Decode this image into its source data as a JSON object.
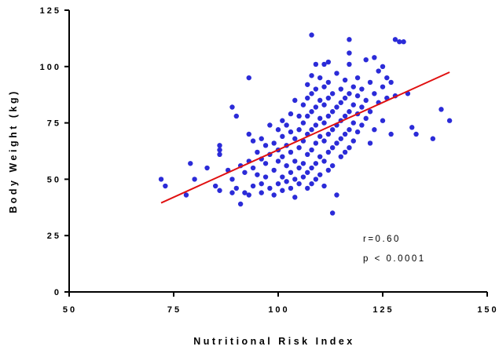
{
  "chart_data": {
    "type": "scatter",
    "xlabel": "Nutritional Risk Index",
    "ylabel": "Body Weight (kg)",
    "xlim": [
      50,
      150
    ],
    "ylim": [
      0,
      125
    ],
    "x_ticks": [
      50,
      75,
      100,
      125,
      150
    ],
    "y_ticks": [
      0,
      25,
      50,
      75,
      100,
      125
    ],
    "grid": false,
    "point_color": "#2b2bd8",
    "line_color": "#e01010",
    "annotations": [
      "r=0.60",
      "p < 0.0001"
    ],
    "regression_line": {
      "x": [
        72,
        141
      ],
      "y": [
        39.5,
        97.5
      ]
    },
    "series": [
      {
        "points": [
          [
            72,
            50
          ],
          [
            73,
            47
          ],
          [
            78,
            43
          ],
          [
            79,
            57
          ],
          [
            80,
            50
          ],
          [
            83,
            55
          ],
          [
            85,
            47
          ],
          [
            86,
            45
          ],
          [
            86,
            65
          ],
          [
            86,
            63
          ],
          [
            86,
            61
          ],
          [
            88,
            54
          ],
          [
            89,
            82
          ],
          [
            89,
            50
          ],
          [
            89,
            44
          ],
          [
            90,
            78
          ],
          [
            90,
            46
          ],
          [
            91,
            56
          ],
          [
            91,
            39
          ],
          [
            92,
            53
          ],
          [
            92,
            44
          ],
          [
            93,
            95
          ],
          [
            93,
            70
          ],
          [
            93,
            43
          ],
          [
            93,
            58
          ],
          [
            94,
            67
          ],
          [
            94,
            55
          ],
          [
            94,
            47
          ],
          [
            95,
            62
          ],
          [
            95,
            52
          ],
          [
            96,
            68
          ],
          [
            96,
            59
          ],
          [
            96,
            48
          ],
          [
            96,
            44
          ],
          [
            97,
            65
          ],
          [
            97,
            57
          ],
          [
            97,
            51
          ],
          [
            98,
            74
          ],
          [
            98,
            61
          ],
          [
            98,
            46
          ],
          [
            99,
            66
          ],
          [
            99,
            54
          ],
          [
            99,
            43
          ],
          [
            100,
            72
          ],
          [
            100,
            63
          ],
          [
            100,
            58
          ],
          [
            100,
            48
          ],
          [
            101,
            76
          ],
          [
            101,
            69
          ],
          [
            101,
            60
          ],
          [
            101,
            51
          ],
          [
            101,
            45
          ],
          [
            102,
            74
          ],
          [
            102,
            65
          ],
          [
            102,
            56
          ],
          [
            102,
            49
          ],
          [
            103,
            79
          ],
          [
            103,
            71
          ],
          [
            103,
            62
          ],
          [
            103,
            53
          ],
          [
            103,
            46
          ],
          [
            104,
            85
          ],
          [
            104,
            68
          ],
          [
            104,
            58
          ],
          [
            104,
            50
          ],
          [
            104,
            42
          ],
          [
            105,
            78
          ],
          [
            105,
            72
          ],
          [
            105,
            64
          ],
          [
            105,
            55
          ],
          [
            105,
            48
          ],
          [
            106,
            83
          ],
          [
            106,
            75
          ],
          [
            106,
            67
          ],
          [
            106,
            57
          ],
          [
            106,
            51
          ],
          [
            107,
            92
          ],
          [
            107,
            86
          ],
          [
            107,
            78
          ],
          [
            107,
            70
          ],
          [
            107,
            61
          ],
          [
            107,
            53
          ],
          [
            107,
            46
          ],
          [
            108,
            114
          ],
          [
            108,
            96
          ],
          [
            108,
            88
          ],
          [
            108,
            80
          ],
          [
            108,
            72
          ],
          [
            108,
            63
          ],
          [
            108,
            55
          ],
          [
            108,
            48
          ],
          [
            109,
            101
          ],
          [
            109,
            90
          ],
          [
            109,
            82
          ],
          [
            109,
            74
          ],
          [
            109,
            66
          ],
          [
            109,
            57
          ],
          [
            109,
            50
          ],
          [
            110,
            95
          ],
          [
            110,
            85
          ],
          [
            110,
            77
          ],
          [
            110,
            69
          ],
          [
            110,
            60
          ],
          [
            110,
            52
          ],
          [
            111,
            101
          ],
          [
            111,
            91
          ],
          [
            111,
            83
          ],
          [
            111,
            75
          ],
          [
            111,
            67
          ],
          [
            111,
            58
          ],
          [
            111,
            47
          ],
          [
            112,
            102
          ],
          [
            112,
            93
          ],
          [
            112,
            86
          ],
          [
            112,
            78
          ],
          [
            112,
            70
          ],
          [
            112,
            62
          ],
          [
            112,
            54
          ],
          [
            113,
            88
          ],
          [
            113,
            80
          ],
          [
            113,
            72
          ],
          [
            113,
            64
          ],
          [
            113,
            56
          ],
          [
            113,
            35
          ],
          [
            114,
            97
          ],
          [
            114,
            82
          ],
          [
            114,
            74
          ],
          [
            114,
            66
          ],
          [
            114,
            43
          ],
          [
            115,
            90
          ],
          [
            115,
            84
          ],
          [
            115,
            76
          ],
          [
            115,
            68
          ],
          [
            115,
            60
          ],
          [
            116,
            94
          ],
          [
            116,
            86
          ],
          [
            116,
            78
          ],
          [
            116,
            70
          ],
          [
            116,
            62
          ],
          [
            117,
            112
          ],
          [
            117,
            106
          ],
          [
            117,
            101
          ],
          [
            117,
            88
          ],
          [
            117,
            80
          ],
          [
            117,
            72
          ],
          [
            117,
            64
          ],
          [
            118,
            91
          ],
          [
            118,
            83
          ],
          [
            118,
            75
          ],
          [
            118,
            67
          ],
          [
            119,
            95
          ],
          [
            119,
            87
          ],
          [
            119,
            79
          ],
          [
            119,
            71
          ],
          [
            120,
            90
          ],
          [
            120,
            82
          ],
          [
            120,
            74
          ],
          [
            121,
            103
          ],
          [
            121,
            85
          ],
          [
            121,
            77
          ],
          [
            122,
            93
          ],
          [
            122,
            80
          ],
          [
            122,
            66
          ],
          [
            123,
            104
          ],
          [
            123,
            88
          ],
          [
            123,
            72
          ],
          [
            124,
            98
          ],
          [
            124,
            84
          ],
          [
            125,
            100
          ],
          [
            125,
            91
          ],
          [
            125,
            76
          ],
          [
            126,
            95
          ],
          [
            126,
            86
          ],
          [
            127,
            93
          ],
          [
            127,
            70
          ],
          [
            128,
            87
          ],
          [
            128,
            112
          ],
          [
            129,
            111
          ],
          [
            130,
            111
          ],
          [
            131,
            88
          ],
          [
            132,
            73
          ],
          [
            133,
            70
          ],
          [
            137,
            68
          ],
          [
            139,
            81
          ],
          [
            141,
            76
          ]
        ]
      }
    ]
  }
}
